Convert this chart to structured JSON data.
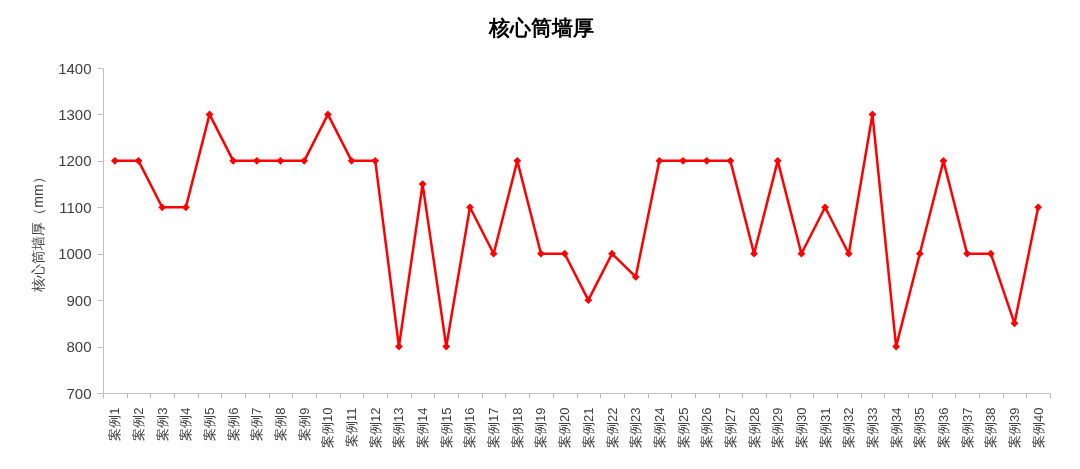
{
  "chart_data": {
    "type": "line",
    "title": "核心筒墙厚",
    "ylabel": "核心筒墙厚（mm）",
    "categories": [
      "案例1",
      "案例2",
      "案例3",
      "案例4",
      "案例5",
      "案例6",
      "案例7",
      "案例8",
      "案例9",
      "案例10",
      "案例11",
      "案例12",
      "案例13",
      "案例14",
      "案例15",
      "案例16",
      "案例17",
      "案例18",
      "案例19",
      "案例20",
      "案例21",
      "案例22",
      "案例23",
      "案例24",
      "案例25",
      "案例26",
      "案例27",
      "案例28",
      "案例29",
      "案例30",
      "案例31",
      "案例32",
      "案例33",
      "案例34",
      "案例35",
      "案例36",
      "案例37",
      "案例38",
      "案例39",
      "案例40"
    ],
    "series": [
      {
        "color": "#ff0000",
        "values": [
          1200,
          1200,
          1100,
          1100,
          1300,
          1200,
          1200,
          1200,
          1200,
          1300,
          1200,
          1200,
          800,
          1150,
          800,
          1100,
          1000,
          1200,
          1000,
          1000,
          900,
          1000,
          950,
          1200,
          1200,
          1200,
          1200,
          1000,
          1200,
          1000,
          1100,
          1000,
          1300,
          800,
          1000,
          1200,
          1000,
          1000,
          850,
          1100
        ]
      }
    ],
    "ylim": [
      700,
      1400
    ],
    "yticks": [
      700,
      800,
      900,
      1000,
      1100,
      1200,
      1300,
      1400
    ],
    "marker": "diamond",
    "line_style": "solid"
  }
}
